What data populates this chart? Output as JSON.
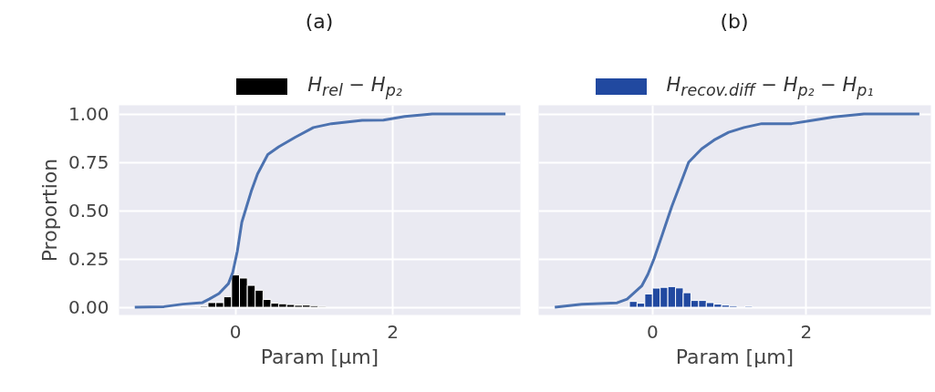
{
  "chart_data": [
    {
      "type": "histogram",
      "title": "(a)",
      "xlabel": "Param [μm]",
      "ylabel": "Proportion",
      "xlim": [
        -1.48,
        3.62
      ],
      "ylim": [
        -0.04,
        1.045
      ],
      "xticks": [
        0,
        2
      ],
      "yticks": [
        {
          "value": 0,
          "label": "0.00"
        },
        {
          "value": 0.25,
          "label": "0.25"
        },
        {
          "value": 0.5,
          "label": "0.50"
        },
        {
          "value": 0.75,
          "label": "0.75"
        },
        {
          "value": 1,
          "label": "1.00"
        }
      ],
      "grid": true,
      "legend": "top",
      "series": [
        {
          "name": "H$_{rel}$ − H$_{p₂}$",
          "color": "#000000",
          "bins": [
            -0.45,
            -0.35,
            -0.25,
            -0.15,
            -0.05,
            0.05,
            0.15,
            0.25,
            0.35,
            0.45,
            0.55,
            0.65,
            0.75,
            0.85,
            0.95,
            1.05,
            1.15
          ],
          "values": [
            0.005,
            0.024,
            0.024,
            0.054,
            0.167,
            0.151,
            0.113,
            0.088,
            0.04,
            0.021,
            0.018,
            0.014,
            0.01,
            0.011,
            0.008,
            0.004
          ]
        },
        {
          "type": "line",
          "color": "#4c72b0",
          "x": [
            -1.28,
            -0.91,
            -0.67,
            -0.42,
            -0.33,
            -0.21,
            -0.09,
            -0.035,
            0.023,
            0.08,
            0.14,
            0.2,
            0.28,
            0.41,
            0.55,
            0.76,
            0.99,
            1.22,
            1.61,
            1.88,
            2.15,
            2.5,
            3.43
          ],
          "values": [
            0.0,
            0.003,
            0.016,
            0.024,
            0.043,
            0.071,
            0.122,
            0.18,
            0.29,
            0.44,
            0.52,
            0.6,
            0.69,
            0.79,
            0.83,
            0.88,
            0.93,
            0.95,
            0.967,
            0.968,
            0.987,
            1.0,
            1.0
          ]
        }
      ]
    },
    {
      "type": "histogram",
      "title": "(b)",
      "xlabel": "Param [μm]",
      "xlim": [
        -1.48,
        3.62
      ],
      "ylim": [
        -0.04,
        1.045
      ],
      "xticks": [
        0,
        2
      ],
      "grid": true,
      "legend": "top",
      "tick_labels": "x",
      "yticks": [
        {
          "value": 0,
          "label": null
        },
        {
          "value": 0.25,
          "label": null
        },
        {
          "value": 0.5,
          "label": null
        },
        {
          "value": 0.75,
          "label": null
        },
        {
          "value": 1,
          "label": null
        }
      ],
      "series": [
        {
          "name": "H$_{recov.diff}$ − H$_{p₂}$ − H$_{p₁}$",
          "color": "#2149a0",
          "bins": [
            -0.3,
            -0.2,
            -0.1,
            0.0,
            0.1,
            0.2,
            0.3,
            0.4,
            0.5,
            0.6,
            0.7,
            0.8,
            0.9,
            1.0,
            1.1,
            1.2,
            1.3
          ],
          "values": [
            0.03,
            0.021,
            0.069,
            0.099,
            0.103,
            0.107,
            0.1,
            0.075,
            0.035,
            0.035,
            0.024,
            0.016,
            0.011,
            0.008,
            0,
            0.005
          ]
        },
        {
          "type": "line",
          "color": "#4c72b0",
          "x": [
            -1.27,
            -0.92,
            -0.46,
            -0.33,
            -0.14,
            -0.06,
            0.02,
            0.14,
            0.25,
            0.37,
            0.47,
            0.64,
            0.8,
            0.99,
            1.19,
            1.42,
            1.81,
            2.12,
            2.36,
            2.75,
            3.47
          ],
          "values": [
            0.0,
            0.015,
            0.023,
            0.042,
            0.11,
            0.17,
            0.25,
            0.39,
            0.52,
            0.645,
            0.75,
            0.82,
            0.865,
            0.905,
            0.93,
            0.95,
            0.95,
            0.97,
            0.985,
            1.0,
            1.0
          ]
        }
      ]
    }
  ]
}
